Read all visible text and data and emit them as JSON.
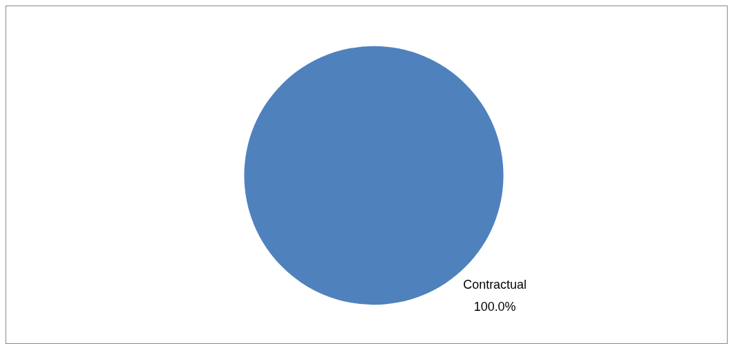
{
  "chart_data": {
    "type": "pie",
    "categories": [
      "Contractual"
    ],
    "values": [
      100
    ],
    "colors": [
      "#4f81bd"
    ],
    "value_labels": [
      "100.0%"
    ],
    "legend": false
  }
}
